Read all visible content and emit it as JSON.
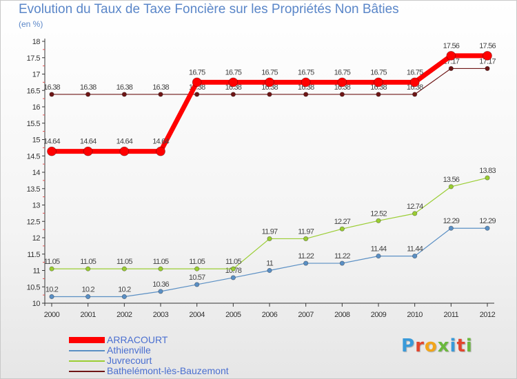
{
  "header": {
    "title": "Evolution du Taux de Taxe Foncière sur les Propriétés Non Bâties",
    "unit": "(en %)"
  },
  "logo": {
    "text": "Proxiti",
    "colors": [
      "#3a9ad9",
      "#e2452d",
      "#f2a51a",
      "#6bb83d",
      "#3a9ad9",
      "#e2452d",
      "#6bb83d"
    ]
  },
  "chart_data": {
    "type": "line",
    "title": "Evolution du Taux de Taxe Foncière sur les Propriétés Non Bâties",
    "ylabel": "(en %)",
    "xlabel": "",
    "categories": [
      "2000",
      "2001",
      "2002",
      "2003",
      "2004",
      "2005",
      "2006",
      "2007",
      "2008",
      "2009",
      "2010",
      "2011",
      "2012"
    ],
    "ylim": [
      10,
      18
    ],
    "yticks": [
      10,
      10.5,
      11,
      11.5,
      12,
      12.5,
      13,
      13.5,
      14,
      14.5,
      15,
      15.5,
      16,
      16.5,
      17,
      17.5,
      18
    ],
    "grid": false,
    "series": [
      {
        "name": "Bathelémont-lès-Bauzemont",
        "color": "#6e1616",
        "width": 1.2,
        "marker": 3.2,
        "values": [
          16.38,
          16.38,
          16.38,
          16.38,
          16.38,
          16.38,
          16.38,
          16.38,
          16.38,
          16.38,
          16.38,
          17.17,
          17.17
        ]
      },
      {
        "name": "Athienville",
        "color": "#5a8fc4",
        "width": 1.2,
        "marker": 3.2,
        "values": [
          10.2,
          10.2,
          10.2,
          10.36,
          10.57,
          10.78,
          11,
          11.22,
          11.22,
          11.44,
          11.44,
          12.29,
          12.29
        ]
      },
      {
        "name": "Juvrecourt",
        "color": "#9acd32",
        "width": 1.2,
        "marker": 3.2,
        "values": [
          11.05,
          11.05,
          11.05,
          11.05,
          11.05,
          11.05,
          11.97,
          11.97,
          12.27,
          12.52,
          12.74,
          13.56,
          13.83
        ]
      },
      {
        "name": "ARRACOURT",
        "color": "#ff0000",
        "width": 7,
        "marker": 6.5,
        "values": [
          14.64,
          14.64,
          14.64,
          14.64,
          16.75,
          16.75,
          16.75,
          16.75,
          16.75,
          16.75,
          16.75,
          17.56,
          17.56
        ]
      }
    ],
    "legend_order": [
      "ARRACOURT",
      "Athienville",
      "Juvrecourt",
      "Bathelémont-lès-Bauzemont"
    ],
    "legend_position": "bottom-left"
  }
}
